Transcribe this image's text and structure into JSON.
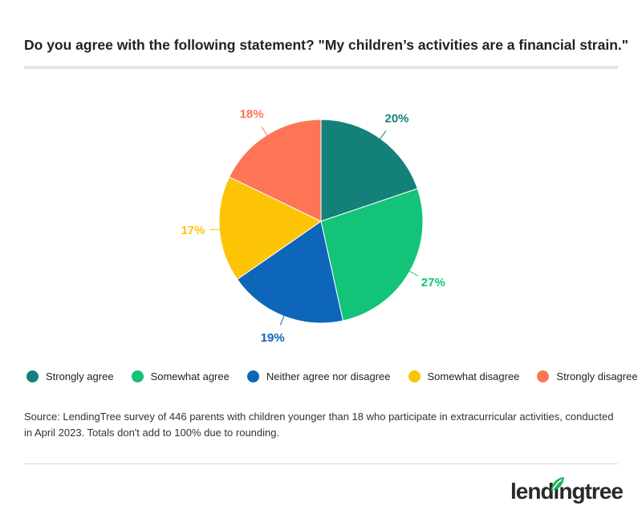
{
  "chart_data": {
    "type": "pie",
    "title": "Do you agree with the following statement? \"My children’s activities are a financial strain.\"",
    "categories": [
      "Strongly agree",
      "Somewhat agree",
      "Neither agree nor disagree",
      "Somewhat disagree",
      "Strongly disagree"
    ],
    "values": [
      20,
      27,
      19,
      17,
      18
    ],
    "value_labels": [
      "20%",
      "27%",
      "19%",
      "17%",
      "18%"
    ],
    "colors": [
      "#14807a",
      "#12c378",
      "#0d66b9",
      "#fdc406",
      "#fd7555"
    ],
    "legend": "bottom",
    "source": "Source: LendingTree survey of 446 parents with children younger than 18 who participate in extracurricular activities, conducted in April 2023. Totals don't add to 100% due to rounding."
  },
  "logo": "lendingtree"
}
